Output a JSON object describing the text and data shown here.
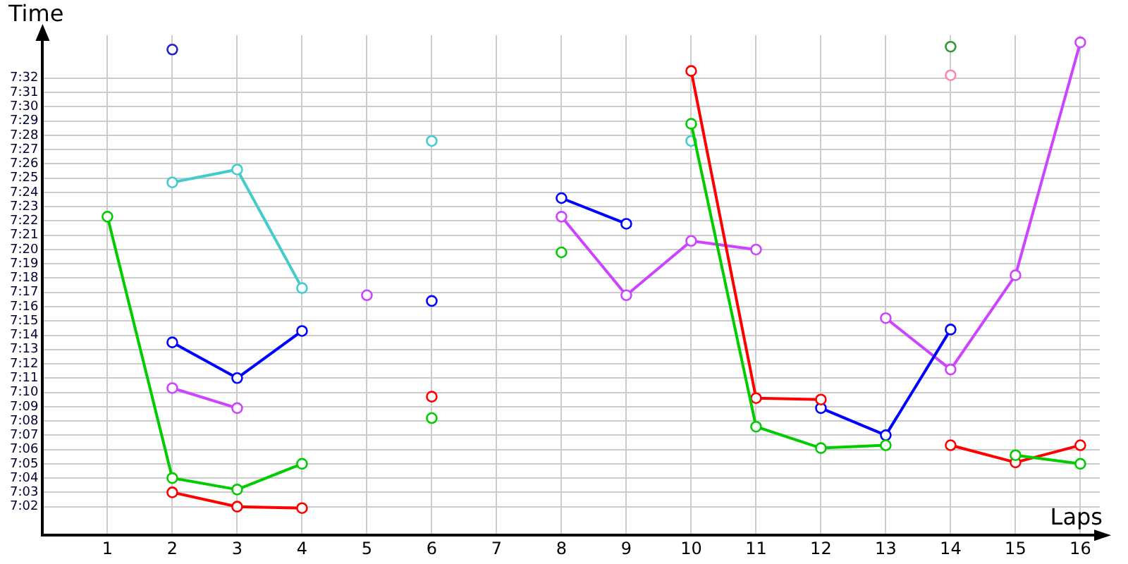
{
  "chart_data": {
    "type": "line",
    "xlabel": "Laps",
    "ylabel": "Time",
    "x": [
      1,
      2,
      3,
      4,
      5,
      6,
      7,
      8,
      9,
      10,
      11,
      12,
      13,
      14,
      15,
      16
    ],
    "xlim": [
      0,
      16.3
    ],
    "xticks": [
      1,
      2,
      3,
      4,
      5,
      6,
      7,
      8,
      9,
      10,
      11,
      12,
      13,
      14,
      15,
      16
    ],
    "ylim": [
      420,
      455
    ],
    "yticks": [
      {
        "value": 422,
        "label": "7:02"
      },
      {
        "value": 423,
        "label": "7:03"
      },
      {
        "value": 424,
        "label": "7:04"
      },
      {
        "value": 425,
        "label": "7:05"
      },
      {
        "value": 426,
        "label": "7:06"
      },
      {
        "value": 427,
        "label": "7:07"
      },
      {
        "value": 428,
        "label": "7:08"
      },
      {
        "value": 429,
        "label": "7:09"
      },
      {
        "value": 430,
        "label": "7:10"
      },
      {
        "value": 431,
        "label": "7:11"
      },
      {
        "value": 432,
        "label": "7:12"
      },
      {
        "value": 433,
        "label": "7:13"
      },
      {
        "value": 434,
        "label": "7:14"
      },
      {
        "value": 435,
        "label": "7:15"
      },
      {
        "value": 436,
        "label": "7:16"
      },
      {
        "value": 437,
        "label": "7:17"
      },
      {
        "value": 438,
        "label": "7:18"
      },
      {
        "value": 439,
        "label": "7:19"
      },
      {
        "value": 440,
        "label": "7:20"
      },
      {
        "value": 441,
        "label": "7:21"
      },
      {
        "value": 442,
        "label": "7:22"
      },
      {
        "value": 443,
        "label": "7:23"
      },
      {
        "value": 444,
        "label": "7:24"
      },
      {
        "value": 445,
        "label": "7:25"
      },
      {
        "value": 446,
        "label": "7:26"
      },
      {
        "value": 447,
        "label": "7:27"
      },
      {
        "value": 448,
        "label": "7:28"
      },
      {
        "value": 449,
        "label": "7:29"
      },
      {
        "value": 450,
        "label": "7:30"
      },
      {
        "value": 451,
        "label": "7:31"
      },
      {
        "value": 452,
        "label": "7:32"
      }
    ],
    "grid": true,
    "marker": "circle",
    "line_style": "solid",
    "series": [
      {
        "color": "#00cc00",
        "values": [
          442.3,
          424.0,
          423.2,
          425.0,
          null,
          428.2,
          null,
          439.8,
          null,
          448.8,
          427.6,
          426.1,
          426.3,
          null,
          425.6,
          425.0
        ]
      },
      {
        "color": "#ff0000",
        "values": [
          null,
          423.0,
          422.0,
          421.9,
          null,
          429.7,
          null,
          null,
          null,
          452.5,
          429.6,
          429.5,
          null,
          426.3,
          425.1,
          426.3
        ]
      },
      {
        "color": "#0000ff",
        "values": [
          null,
          433.5,
          431.0,
          434.3,
          null,
          436.4,
          null,
          443.6,
          441.8,
          null,
          null,
          428.9,
          427.0,
          434.4,
          null,
          null
        ]
      },
      {
        "color": "#cc44ff",
        "values": [
          null,
          430.3,
          428.9,
          null,
          436.8,
          null,
          null,
          442.3,
          436.8,
          440.6,
          440.0,
          null,
          435.2,
          431.6,
          438.2,
          454.5
        ]
      },
      {
        "color": "#44cccc",
        "values": [
          null,
          444.7,
          445.6,
          437.3,
          null,
          447.6,
          null,
          null,
          null,
          447.6,
          null,
          null,
          null,
          null,
          null,
          null
        ]
      },
      {
        "color": "#2222cc",
        "values": [
          null,
          454.0,
          null,
          null,
          null,
          null,
          null,
          null,
          null,
          null,
          null,
          null,
          null,
          null,
          null,
          null
        ]
      },
      {
        "color": "#ff88aa",
        "values": [
          null,
          null,
          null,
          null,
          null,
          null,
          null,
          null,
          null,
          null,
          null,
          null,
          null,
          452.2,
          null,
          null
        ]
      },
      {
        "color": "#339933",
        "values": [
          null,
          null,
          null,
          null,
          null,
          null,
          null,
          null,
          null,
          null,
          null,
          null,
          null,
          454.2,
          null,
          null
        ]
      }
    ]
  }
}
